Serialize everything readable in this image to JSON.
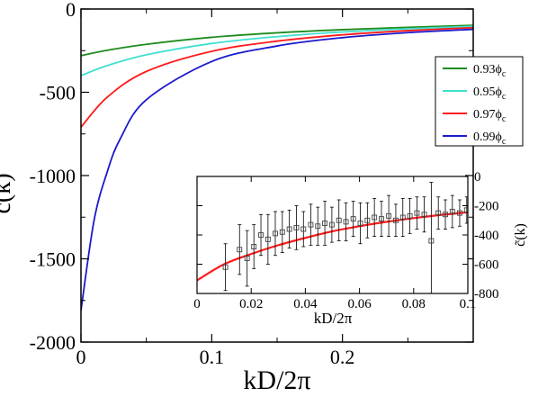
{
  "chart_data": [
    {
      "type": "line",
      "xlabel": "kD/2π",
      "ylabel": "c̃(k)",
      "xlim": [
        0,
        0.3
      ],
      "ylim": [
        -2000,
        0
      ],
      "xticks": [
        0,
        0.1,
        0.2
      ],
      "xtick_labels": [
        "0",
        "0.1",
        "0.2"
      ],
      "yticks": [
        0,
        -500,
        -1000,
        -1500,
        -2000
      ],
      "ytick_labels": [
        "0",
        "-500",
        "-1000",
        "-1500",
        "-2000"
      ],
      "grid": false,
      "legend_position": "upper-right",
      "series": [
        {
          "name": "0.93ϕ",
          "subscript": "c",
          "color": "#1e8c1e",
          "x": [
            0,
            0.02,
            0.05,
            0.1,
            0.15,
            0.2,
            0.25,
            0.3
          ],
          "y": [
            -280,
            -248,
            -212,
            -170,
            -143,
            -124,
            -110,
            -98
          ]
        },
        {
          "name": "0.95ϕ",
          "subscript": "c",
          "color": "#40e0d0",
          "x": [
            0,
            0.02,
            0.05,
            0.1,
            0.15,
            0.2,
            0.25,
            0.3
          ],
          "y": [
            -400,
            -340,
            -275,
            -207,
            -166,
            -138,
            -119,
            -104
          ]
        },
        {
          "name": "0.97ϕ",
          "subscript": "c",
          "color": "#ff1a1a",
          "x": [
            0,
            0.02,
            0.05,
            0.1,
            0.15,
            0.2,
            0.25,
            0.3
          ],
          "y": [
            -710,
            -530,
            -375,
            -254,
            -193,
            -155,
            -130,
            -112
          ]
        },
        {
          "name": "0.99ϕ",
          "subscript": "c",
          "color": "#1a1acc",
          "x": [
            0,
            0.01,
            0.02,
            0.03,
            0.05,
            0.1,
            0.15,
            0.2,
            0.25,
            0.3
          ],
          "y": [
            -1810,
            -1270,
            -980,
            -780,
            -545,
            -315,
            -222,
            -172,
            -142,
            -122
          ]
        }
      ]
    },
    {
      "type": "scatter",
      "inset": true,
      "xlabel": "kD/2π",
      "ylabel": "c̃(k)",
      "xlim": [
        0,
        0.1
      ],
      "ylim": [
        -800,
        0
      ],
      "xticks": [
        0,
        0.02,
        0.04,
        0.06,
        0.08,
        0.1
      ],
      "xtick_labels": [
        "0",
        "0.02",
        "0.04",
        "0.06",
        "0.08",
        "0.1"
      ],
      "yticks": [
        0,
        -200,
        -400,
        -600,
        -800
      ],
      "ytick_labels": [
        "0",
        "-200",
        "-400",
        "-600",
        "-800"
      ],
      "fit_color": "#ff1a1a",
      "fit": {
        "x": [
          0,
          0.01,
          0.02,
          0.03,
          0.04,
          0.05,
          0.06,
          0.07,
          0.08,
          0.09,
          0.1
        ],
        "y": [
          -710,
          -600,
          -530,
          -470,
          -420,
          -375,
          -340,
          -310,
          -285,
          -263,
          -245
        ]
      },
      "points": {
        "x": [
          0.0105,
          0.0157,
          0.0185,
          0.021,
          0.0236,
          0.0262,
          0.0289,
          0.0315,
          0.0341,
          0.0367,
          0.0393,
          0.042,
          0.0446,
          0.0472,
          0.0498,
          0.0524,
          0.055,
          0.0577,
          0.0603,
          0.0629,
          0.0655,
          0.0681,
          0.0708,
          0.0734,
          0.076,
          0.0786,
          0.0812,
          0.0839,
          0.0865,
          0.0891,
          0.0917,
          0.0943,
          0.097,
          0.0996
        ],
        "y": [
          -620,
          -500,
          -560,
          -480,
          -400,
          -430,
          -390,
          -380,
          -360,
          -350,
          -360,
          -330,
          -340,
          -320,
          -330,
          -300,
          -310,
          -290,
          -320,
          -300,
          -280,
          -290,
          -270,
          -300,
          -280,
          -270,
          -250,
          -260,
          -440,
          -250,
          -260,
          -240,
          -250,
          -230
        ],
        "err": [
          160,
          170,
          190,
          150,
          140,
          170,
          150,
          140,
          130,
          150,
          120,
          140,
          130,
          150,
          120,
          140,
          130,
          120,
          140,
          120,
          130,
          120,
          140,
          110,
          130,
          120,
          110,
          120,
          400,
          110,
          100,
          110,
          90,
          90
        ]
      }
    }
  ]
}
